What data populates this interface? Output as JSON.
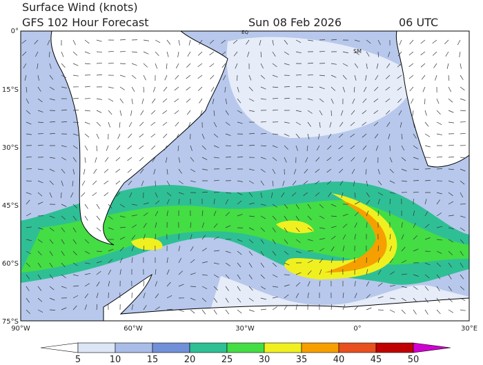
{
  "header": {
    "title": "Surface Wind (knots)",
    "subtitle": "GFS 102 Hour Forecast",
    "date": "Sun 08 Feb 2026",
    "time": "06 UTC"
  },
  "map": {
    "lat_labels": [
      "0°",
      "15°S",
      "30°S",
      "45°S",
      "60°S",
      "75°S"
    ],
    "lon_labels": [
      "90°W",
      "60°W",
      "30°W",
      "0°",
      "30°E"
    ],
    "place_labels": [
      "EQ",
      "SM"
    ]
  },
  "colorbar": {
    "levels": [
      5,
      10,
      15,
      20,
      25,
      30,
      35,
      40,
      45,
      50
    ],
    "colors": [
      "#ffffff",
      "#dde6f5",
      "#a9bde8",
      "#7090d8",
      "#2fbf95",
      "#44dd44",
      "#f0f020",
      "#f5a000",
      "#e85020",
      "#c00000",
      "#d000d0"
    ]
  }
}
